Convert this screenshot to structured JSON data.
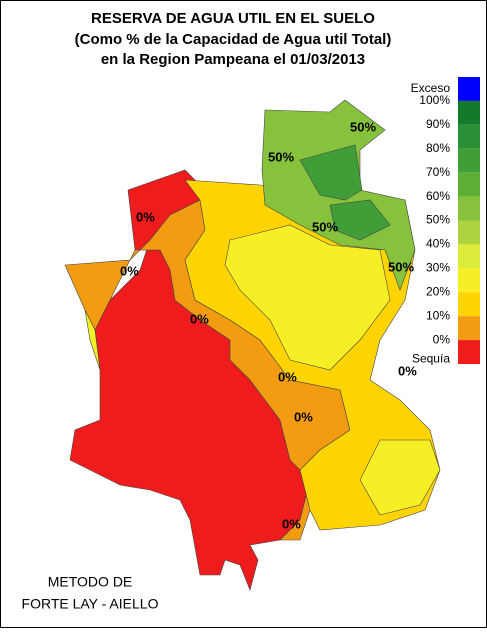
{
  "header": {
    "title_lines": [
      "RESERVA DE AGUA UTIL EN EL SUELO",
      "(Como % de la Capacidad de  Agua util Total)",
      "en la Region Pampeana el 01/03/2013"
    ]
  },
  "legend": {
    "labels": [
      "Exceso",
      "100%",
      "90%",
      "80%",
      "70%",
      "60%",
      "50%",
      "40%",
      "30%",
      "20%",
      "10%",
      "0%",
      "Sequía"
    ],
    "colors": [
      "#0000ff",
      "#137a2a",
      "#2a8f35",
      "#3f9e37",
      "#5cae35",
      "#86c23c",
      "#aed340",
      "#dcec3a",
      "#f7ef25",
      "#ffd400",
      "#f39c12",
      "#ee1c1c"
    ]
  },
  "contour_labels": [
    "50%",
    "50%",
    "50%",
    "50%",
    "0%",
    "0%",
    "0%",
    "0%",
    "0%",
    "0%",
    "0%"
  ],
  "footer": {
    "lines": [
      "METODO DE",
      "FORTE LAY - AIELLO"
    ]
  }
}
